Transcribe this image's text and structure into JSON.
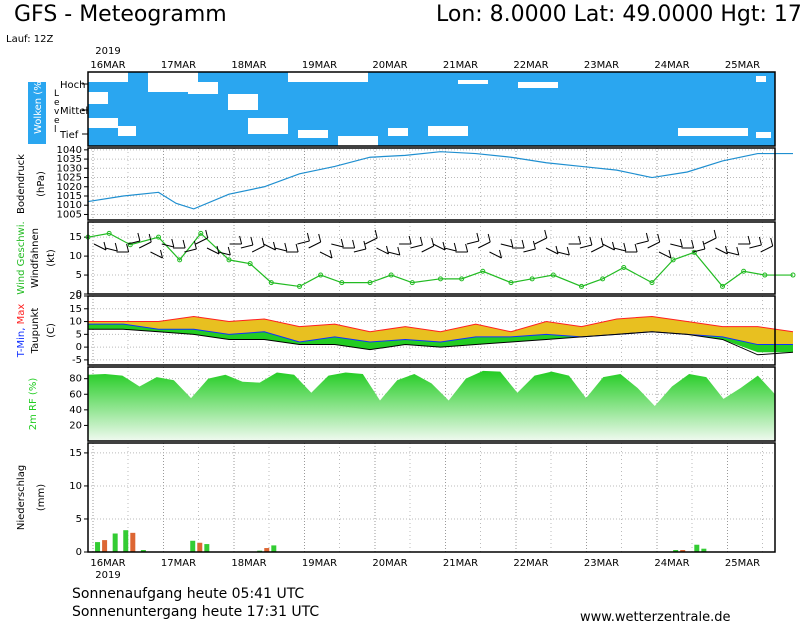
{
  "header": {
    "title": "GFS - Meteogramm",
    "location": "Lon: 8.0000 Lat: 49.0000 Hgt: 17",
    "run": "Lauf: 12Z",
    "year": "2019"
  },
  "footer": {
    "sunrise": "Sonnenaufgang heute 05:41 UTC",
    "sunset": "Sonnenuntergang heute 17:31 UTC",
    "website": "www.wetterzentrale.de"
  },
  "colors": {
    "sky": "#2aa6f0",
    "pressure": "#1f8fd0",
    "wind_speed": "#22bb22",
    "tmin": "#1030ff",
    "tmax": "#ff2020",
    "dew": "#000000",
    "rh": "#22cc22",
    "precip": "#33cc33"
  },
  "chart_data": [
    {
      "type": "heatmap",
      "panel": "clouds",
      "ylabel": "Wolken (%)",
      "side_label": "Level",
      "levels": [
        "Hoch",
        "Mittel",
        "Tief"
      ],
      "x_dates": [
        "16MAR",
        "17MAR",
        "18MAR",
        "19MAR",
        "20MAR",
        "21MAR",
        "22MAR",
        "23MAR",
        "24MAR",
        "25MAR"
      ]
    },
    {
      "type": "line",
      "panel": "pressure",
      "ylabel": "Bodendruck",
      "unit": "(hPa)",
      "yticks": [
        1005,
        1010,
        1015,
        1020,
        1025,
        1030,
        1035,
        1040
      ],
      "ylim": [
        1002,
        1041
      ],
      "x_days": [
        0,
        0.5,
        1,
        1.25,
        1.5,
        2,
        2.5,
        3,
        3.5,
        4,
        4.5,
        5,
        5.5,
        6,
        6.5,
        7,
        7.5,
        8,
        8.5,
        9,
        9.5,
        10
      ],
      "values": [
        1012,
        1015,
        1017,
        1011,
        1008,
        1016,
        1020,
        1027,
        1031,
        1036,
        1037,
        1039,
        1038,
        1036,
        1033,
        1031,
        1029,
        1025,
        1028,
        1034,
        1038,
        1038
      ]
    },
    {
      "type": "line",
      "panel": "wind",
      "ylabel": "Wind Geschwi.",
      "ylabel2": "Windfahnen",
      "unit": "(kt)",
      "yticks": [
        0,
        5,
        10,
        15
      ],
      "ylim": [
        0,
        19
      ],
      "x_days": [
        0,
        0.3,
        0.6,
        1,
        1.3,
        1.6,
        2,
        2.3,
        2.6,
        3,
        3.3,
        3.6,
        4,
        4.3,
        4.6,
        5,
        5.3,
        5.6,
        6,
        6.3,
        6.6,
        7,
        7.3,
        7.6,
        8,
        8.3,
        8.6,
        9,
        9.3,
        9.6,
        10
      ],
      "values": [
        15,
        16,
        13,
        15,
        9,
        16,
        9,
        8,
        3,
        2,
        5,
        3,
        3,
        5,
        3,
        4,
        4,
        6,
        3,
        4,
        5,
        2,
        4,
        7,
        3,
        9,
        11,
        2,
        6,
        5,
        5
      ]
    },
    {
      "type": "area",
      "panel": "temperature",
      "ylabel": "T-Min, Max",
      "ylabel2": "Taupunkt",
      "unit": "(C)",
      "yticks": [
        -5,
        0,
        5,
        10,
        15,
        20
      ],
      "ylim": [
        -7,
        20
      ],
      "x_days": [
        0,
        0.5,
        1,
        1.5,
        2,
        2.5,
        3,
        3.5,
        4,
        4.5,
        5,
        5.5,
        6,
        6.5,
        7,
        7.5,
        8,
        8.5,
        9,
        9.5,
        10
      ],
      "series": [
        {
          "name": "T-Min",
          "values": [
            9,
            9,
            7,
            7,
            5,
            6,
            2,
            4,
            2,
            3,
            2,
            4,
            4,
            5,
            4,
            5,
            6,
            5,
            4,
            1,
            1
          ]
        },
        {
          "name": "Max",
          "values": [
            10,
            10,
            10,
            12,
            10,
            11,
            8,
            9,
            6,
            8,
            6,
            9,
            6,
            10,
            8,
            11,
            12,
            10,
            8,
            8,
            6
          ]
        },
        {
          "name": "Taupunkt",
          "values": [
            7,
            7,
            6,
            5,
            3,
            3,
            1,
            1,
            -1,
            1,
            0,
            1,
            2,
            3,
            4,
            5,
            6,
            5,
            3,
            -3,
            -2
          ]
        }
      ]
    },
    {
      "type": "area",
      "panel": "humidity",
      "ylabel": "2m RF (%)",
      "yticks": [
        20,
        40,
        60,
        80
      ],
      "ylim": [
        0,
        95
      ],
      "x_days": [
        0,
        0.25,
        0.5,
        0.75,
        1,
        1.25,
        1.5,
        1.75,
        2,
        2.25,
        2.5,
        2.75,
        3,
        3.25,
        3.5,
        3.75,
        4,
        4.25,
        4.5,
        4.75,
        5,
        5.25,
        5.5,
        5.75,
        6,
        6.25,
        6.5,
        6.75,
        7,
        7.25,
        7.5,
        7.75,
        8,
        8.25,
        8.5,
        8.75,
        9,
        9.25,
        9.5,
        9.75,
        10
      ],
      "values": [
        85,
        86,
        84,
        70,
        82,
        78,
        55,
        80,
        85,
        76,
        75,
        88,
        85,
        62,
        84,
        88,
        86,
        52,
        78,
        86,
        74,
        52,
        80,
        90,
        89,
        62,
        84,
        89,
        84,
        55,
        82,
        86,
        68,
        45,
        70,
        86,
        82,
        54,
        68,
        84,
        60
      ]
    },
    {
      "type": "bar",
      "panel": "precipitation",
      "ylabel": "Niederschlag",
      "unit": "(mm)",
      "yticks": [
        0,
        5,
        10,
        15
      ],
      "ylim": [
        0,
        16.5
      ],
      "x_days": [
        0.1,
        0.2,
        0.35,
        0.5,
        0.6,
        0.75,
        1.45,
        1.55,
        1.65,
        2.4,
        2.5,
        2.6,
        8.3,
        8.4,
        8.6,
        8.7
      ],
      "values": [
        1.5,
        1.8,
        2.8,
        3.3,
        2.9,
        0.3,
        1.7,
        1.4,
        1.2,
        0.2,
        0.6,
        1.0,
        0.3,
        0.3,
        1.1,
        0.5
      ]
    }
  ]
}
